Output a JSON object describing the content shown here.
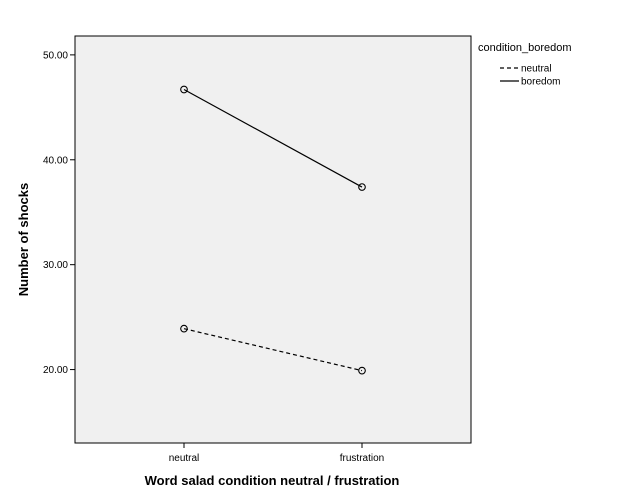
{
  "chart_data": {
    "type": "line",
    "categories": [
      "neutral",
      "frustration"
    ],
    "series": [
      {
        "name": "neutral",
        "values": [
          23.9,
          19.9
        ],
        "line_style": "dashed"
      },
      {
        "name": "boredom",
        "values": [
          46.7,
          37.4
        ],
        "line_style": "solid"
      }
    ],
    "xlabel": "Word salad condition neutral / frustration",
    "ylabel": "Number of shocks",
    "yticks": [
      "20.00",
      "30.00",
      "40.00",
      "50.00"
    ],
    "ylim": [
      13,
      51.8
    ],
    "legend_title": "condition_boredom",
    "legend_position": "right",
    "grid": false,
    "colors": {
      "plot_background": "#f0f0f0",
      "line": "#000000"
    }
  }
}
